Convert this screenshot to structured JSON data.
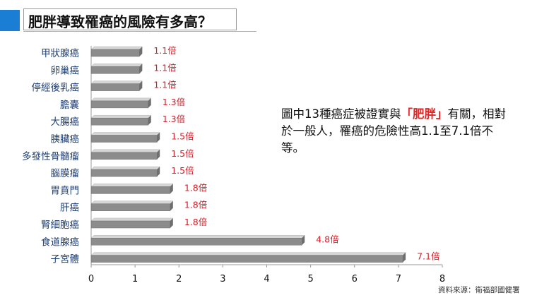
{
  "header": {
    "title": "肥胖導致罹癌的風險有多高？"
  },
  "colors": {
    "accent": "#1a7fd4",
    "bar_top": "#d6d6d6",
    "bar_front": "#8c8c8c",
    "value_label": "#d1202a",
    "category_label": "#1f3f73"
  },
  "chart_data": {
    "type": "bar",
    "orientation": "horizontal",
    "categories": [
      "甲狀腺癌",
      "卵巢癌",
      "停經後乳癌",
      "膽囊",
      "大腸癌",
      "胰臟癌",
      "多發性骨髓瘤",
      "腦膜瘤",
      "胃賁門",
      "肝癌",
      "腎細胞癌",
      "食道腺癌",
      "子宮體"
    ],
    "values": [
      1.1,
      1.1,
      1.1,
      1.3,
      1.3,
      1.5,
      1.5,
      1.5,
      1.8,
      1.8,
      1.8,
      4.8,
      7.1
    ],
    "data_labels": [
      "1.1倍",
      "1.1倍",
      "1.1倍",
      "1.3倍",
      "1.3倍",
      "1.5倍",
      "1.5倍",
      "1.5倍",
      "1.8倍",
      "1.8倍",
      "1.8倍",
      "4.8倍",
      "7.1倍"
    ],
    "xlim": [
      0,
      8
    ],
    "x_ticks": [
      "0",
      "1",
      "2",
      "3",
      "4",
      "5",
      "6",
      "7",
      "8"
    ],
    "grid": false
  },
  "note": {
    "text_before": "圖中13種癌症被證實與",
    "highlight": "「肥胖」",
    "text_after": "有關，相對於一般人，罹癌的危險性高1.1至7.1倍不等。"
  },
  "source": "資料來源：衛福部國健署"
}
